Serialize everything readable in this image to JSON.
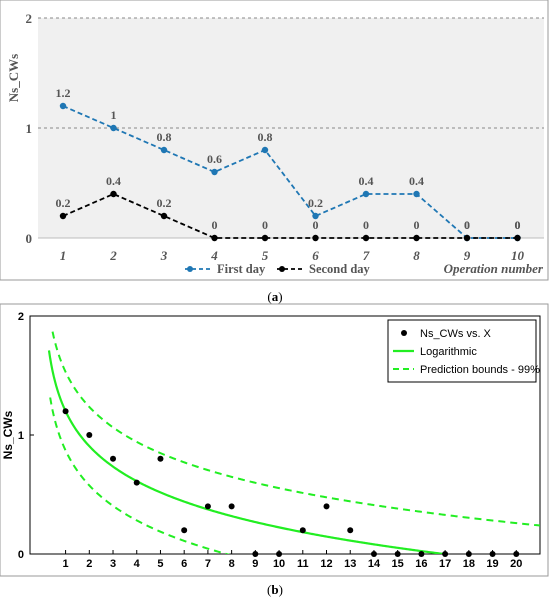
{
  "chart_data": [
    {
      "type": "line",
      "panel_label": "a",
      "ylabel": "Ns_CWs",
      "xlabel": "Operation number",
      "categories": [
        "1",
        "2",
        "3",
        "4",
        "5",
        "6",
        "7",
        "8",
        "9",
        "10"
      ],
      "yticks": [
        "0",
        "1",
        "2"
      ],
      "ylim": [
        0,
        2
      ],
      "grid": "horizontal dashed at 1 and 2",
      "legend": "bottom-center",
      "series": [
        {
          "name": "First day",
          "values": [
            1.2,
            1,
            0.8,
            0.6,
            0.8,
            0.2,
            0.4,
            0.4,
            0,
            0
          ],
          "labels": [
            "1.2",
            "1",
            "0.8",
            "0.6",
            "0.8",
            "0.2",
            "0.4",
            "0.4",
            "0",
            "0"
          ],
          "color": "#1f77b4"
        },
        {
          "name": "Second day",
          "values": [
            0.2,
            0.4,
            0.2,
            0,
            0,
            0,
            0,
            0,
            0,
            0
          ],
          "labels": [
            "0.2",
            "0.4",
            "0.2",
            "0",
            "0",
            "0",
            "0",
            "0",
            "0",
            "0"
          ],
          "color": "#000000"
        }
      ]
    },
    {
      "type": "scatter",
      "panel_label": "b",
      "ylabel": "Ns_CWs",
      "xticks": [
        "1",
        "2",
        "3",
        "4",
        "5",
        "6",
        "7",
        "8",
        "9",
        "10",
        "11",
        "12",
        "13",
        "14",
        "15",
        "16",
        "17",
        "18",
        "19",
        "20"
      ],
      "yticks": [
        "0",
        "1",
        "2"
      ],
      "xlim": [
        -0.5,
        21
      ],
      "ylim": [
        0,
        2
      ],
      "legend": "top-right",
      "legend_entries": [
        "Ns_CWs vs. X",
        "Logarithmic",
        "Prediction bounds - 99%"
      ],
      "points": {
        "x": [
          1,
          2,
          3,
          4,
          5,
          6,
          7,
          8,
          9,
          10,
          11,
          12,
          13,
          14,
          15,
          16,
          17,
          18,
          19,
          20
        ],
        "y": [
          1.2,
          1,
          0.8,
          0.6,
          0.8,
          0.2,
          0.4,
          0.4,
          0,
          0,
          0.2,
          0.4,
          0.2,
          0,
          0,
          0,
          0,
          0,
          0,
          0
        ]
      },
      "fit": {
        "model": "logarithmic",
        "a": 1.2,
        "b": -0.424,
        "x_end": 17.0
      },
      "bounds": {
        "offset": 0.33
      },
      "colors": {
        "points": "#000000",
        "fit": "#22ee22",
        "bounds": "#22ee22"
      }
    }
  ],
  "captions": {
    "a": "a",
    "b": "b"
  }
}
